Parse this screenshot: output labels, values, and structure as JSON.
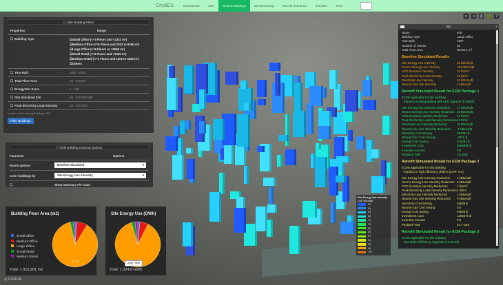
{
  "nav": {
    "logo": "CityBES",
    "tabs": [
      "Introduction",
      "Start",
      "Search Buildings",
      "Benchmarking",
      "Retrofit Scenarios",
      "Simulate",
      "Team"
    ],
    "active": 2
  },
  "filters": {
    "toggle": "Hide Building Filters",
    "col_property": "Properties",
    "col_range": "Range",
    "rows": [
      {
        "label": "Building Type",
        "options": [
          "Small Office (<=3 Floors and <2322 m²)",
          "Medium Office (<=5 Floors and 2322 to 9290 m²)",
          "Large Office (>=6 Floors or >9290 m²)",
          "Small Retail (<=3 Floors and <1300 m²)",
          "Medium Retail (<=3 Floors and 1300 to 4645 m²)",
          "Others"
        ]
      },
      {
        "label": "Year Built",
        "range": "1850 - 2015"
      },
      {
        "label": "Total Floor Area",
        "range": "10  -  347513"
      },
      {
        "label": "EnergyStar Score",
        "range": "1 - 100"
      },
      {
        "label": "Site Simulated EUI",
        "range": "46 - 317 kBtu/sqft"
      },
      {
        "label": "Peak Electricity Load Intensity",
        "range": "19 - 174 W/m²"
      }
    ],
    "summary1": "Number of Remaining Buildings: 368",
    "summary2": "Filter Buildings"
  },
  "coloring": {
    "toggle": "Hide Building Coloring Options",
    "col_param": "Parameter",
    "col_options": "Options",
    "result_label": "Result options",
    "result_value": "Baseline Simulated",
    "color_label": "Color buildings by",
    "color_value": "Site Energy Use Intensity",
    "pie_label": "Show Summary Pie Chart"
  },
  "pies": [
    {
      "title": "Building Floor Area (m2)",
      "total": "Total: 7,015,201 m2",
      "slices": [
        {
          "name": "Small Office",
          "value": 1.5,
          "color": "#3a62d6"
        },
        {
          "name": "Medium Office",
          "value": 7.3,
          "color": "#e8190f"
        },
        {
          "name": "Large Office",
          "value": 87.7,
          "color": "#ff9c00"
        },
        {
          "name": "Small Retail",
          "value": 2.3,
          "color": "#10a020"
        },
        {
          "name": "Medium Retail",
          "value": 1.2,
          "color": "#9a1ea8"
        }
      ],
      "label": "87.7%"
    },
    {
      "title": "Site Energy Use (GWh)",
      "total": "Total: 1,324.8 GWh",
      "slices": [
        {
          "name": "Small Office",
          "value": 1.5,
          "color": "#3a62d6"
        },
        {
          "name": "Medium Office",
          "value": 6.0,
          "color": "#e8190f"
        },
        {
          "name": "Large Office",
          "value": 88.0,
          "color": "#ff9c00"
        },
        {
          "name": "Small Retail",
          "value": 2.5,
          "color": "#10a020"
        },
        {
          "name": "Medium Retail",
          "value": 2.0,
          "color": "#9a1ea8"
        }
      ],
      "tooltip": "Large Office"
    }
  ],
  "color_legend": {
    "title": "Site Energy Use Intensity",
    "unit": "Unit: kBtu/sqft",
    "values": [
      "57",
      "61",
      "64",
      "68",
      "72",
      "76",
      "80",
      "83",
      "87",
      "91",
      "95",
      "98",
      "102"
    ],
    "colors": [
      "#1e5cff",
      "#1e8cff",
      "#1ec8ff",
      "#1ee8e0",
      "#1ee8a0",
      "#1ee850",
      "#30f020",
      "#50f010",
      "#90f010",
      "#c8f010",
      "#f0e010",
      "#f0a010",
      "#f07010"
    ]
  },
  "info": {
    "title": "930",
    "props": [
      [
        "Name",
        "930"
      ],
      [
        "Building Type",
        "Large Office"
      ],
      [
        "Year Built",
        "1907"
      ],
      [
        "Number of Stories",
        "35"
      ],
      [
        "Total Floor Area",
        "85739.1 m²"
      ]
    ],
    "sections": [
      {
        "title": "Baseline Simulated Results",
        "color": "#f0a020",
        "rows": [
          [
            "Site Energy Use Intensity",
            "62 kBtu/sqft"
          ],
          [
            "Source Energy Use Intensity",
            "192 kBtu/sqft"
          ],
          [
            "CO2 Emission Intensity",
            "76 lbs/m²"
          ],
          [
            "Peak Electricity Load Intensity",
            "48 W/m²"
          ],
          [
            "Electricity Use Intensity",
            "61 kBtu/sqft"
          ],
          [
            "Natural Gas Use Intensity",
            "2 kBtu/sqft"
          ]
        ]
      },
      {
        "title": "Retrofit Simulated Result for ECM Package 1",
        "color": "#30e060",
        "note": [
          "ECMs applicable for this building",
          "- Replace existing lighting with LED upgrade (0.6W/sf)"
        ],
        "rows": [
          [
            "Site Energy Use Intensity Reduction",
            "17 kBtu/sqft"
          ],
          [
            "Source Energy Use Intensity Reduction",
            "55 kBtu/sqft"
          ],
          [
            "CO2 Emission Intensity Reduction",
            "21 lbs/m²"
          ],
          [
            "Peak Electricity Load Intensity Reduction",
            "16 W/m²"
          ],
          [
            "Electricity Use Intensity Reduction",
            "18 kBtu/sqft"
          ],
          [
            "Natural Gas Use Intensity Reduction",
            "-1 kBtu/sqft"
          ],
          [
            "Electricity Cost Saving",
            "984354 $"
          ],
          [
            "Natural Gas Cost Saving",
            "-7971 $"
          ],
          [
            "Energy Cost Saving",
            "976383 $"
          ],
          [
            "Investment Cost",
            "3548990 $"
          ],
          [
            "Incentive Amount",
            "0 $"
          ],
          [
            "Payback Year",
            "3.6 year"
          ]
        ]
      },
      {
        "title": "Retrofit Simulated Result for ECM Package 2",
        "color": "#e8e070",
        "note": [
          "ECMs applicable for this building",
          "- Replace to high efficiency chillers (COP: 6.2)"
        ],
        "rows": [
          [
            "Site Energy Use Intensity Reduction",
            "1 kBtu/sqft"
          ],
          [
            "Source Energy Use Intensity Reduction",
            "3 kBtu/sqft"
          ],
          [
            "CO2 Emission Intensity Reduction",
            "1 lbs/m²"
          ],
          [
            "Peak Electricity Load Intensity Reduction",
            "1 W/m²"
          ],
          [
            "Electricity Use Intensity Reduction",
            "1 kBtu/sqft"
          ],
          [
            "Natural Gas Use Intensity Reduction",
            "0 kBtu/sqft"
          ],
          [
            "Electricity Cost Saving",
            "46839 $"
          ],
          [
            "Natural Gas Cost Saving",
            "0 $"
          ],
          [
            "Energy Cost Saving",
            "46839 $"
          ],
          [
            "Investment Cost",
            "1205670 $"
          ],
          [
            "Incentive Amount",
            "0 $"
          ],
          [
            "Payback Year",
            "25.7 year"
          ]
        ]
      },
      {
        "title": "Retrofit Simulated Result for ECM Package 3",
        "color": "#30e060",
        "note": [
          "ECMs applicable for this building",
          "- Gas Boiler Efficiency Upgrade (AFUE 95)"
        ],
        "rows": []
      }
    ]
  },
  "footer": {
    "cesium": "CESIUM"
  }
}
